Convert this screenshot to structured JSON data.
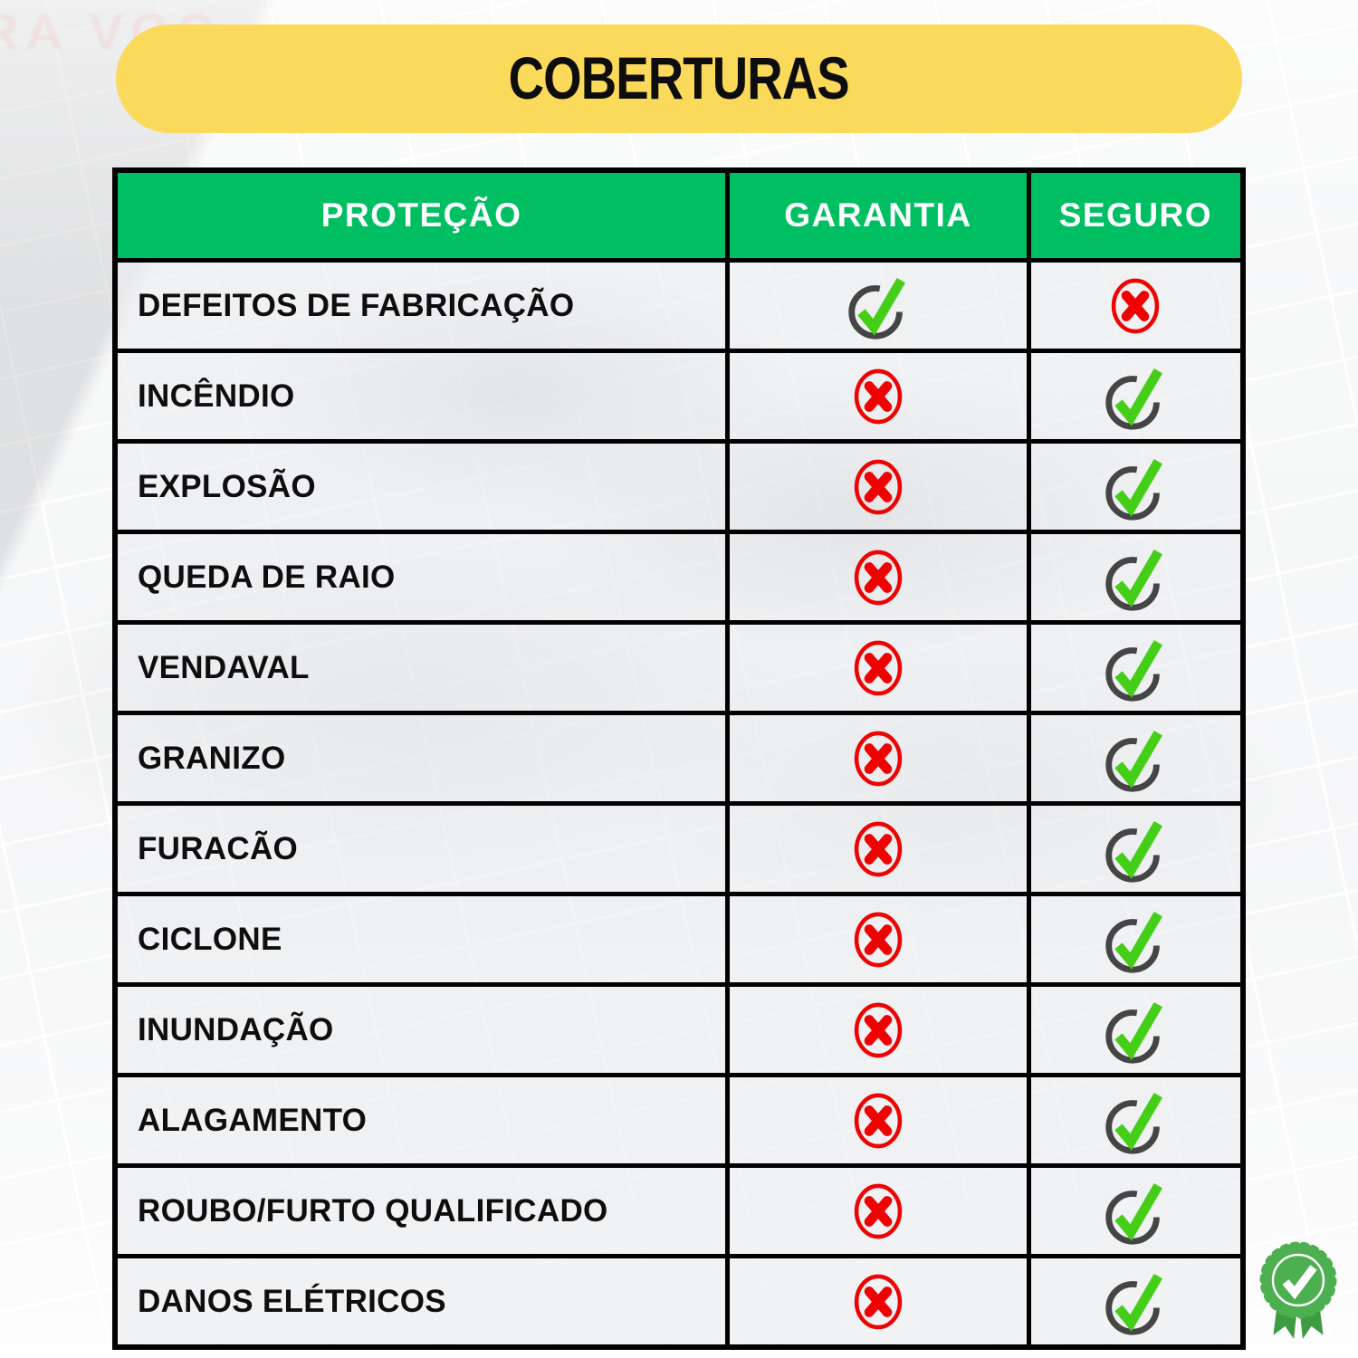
{
  "page": {
    "title": "COBERTURAS"
  },
  "background": {
    "sign_text": "RA VOC"
  },
  "table": {
    "headers": [
      "PROTEÇÃO",
      "GARANTIA",
      "SEGURO"
    ],
    "rows": [
      {
        "protection": "DEFEITOS DE FABRICAÇÃO",
        "garantia": "check",
        "seguro": "cross"
      },
      {
        "protection": "INCÊNDIO",
        "garantia": "cross",
        "seguro": "check"
      },
      {
        "protection": "EXPLOSÃO",
        "garantia": "cross",
        "seguro": "check"
      },
      {
        "protection": "QUEDA DE RAIO",
        "garantia": "cross",
        "seguro": "check"
      },
      {
        "protection": "VENDAVAL",
        "garantia": "cross",
        "seguro": "check"
      },
      {
        "protection": "GRANIZO",
        "garantia": "cross",
        "seguro": "check"
      },
      {
        "protection": "FURACÃO",
        "garantia": "cross",
        "seguro": "check"
      },
      {
        "protection": "CICLONE",
        "garantia": "cross",
        "seguro": "check"
      },
      {
        "protection": "INUNDAÇÃO",
        "garantia": "cross",
        "seguro": "check"
      },
      {
        "protection": "ALAGAMENTO",
        "garantia": "cross",
        "seguro": "check"
      },
      {
        "protection": "ROUBO/FURTO QUALIFICADO",
        "garantia": "cross",
        "seguro": "check"
      },
      {
        "protection": "DANOS ELÉTRICOS",
        "garantia": "cross",
        "seguro": "check"
      }
    ]
  },
  "icons": {
    "check": "check-in-circle-icon",
    "cross": "x-in-circle-icon",
    "badge": "ribbon-award-check-icon"
  },
  "colors": {
    "banner_yellow": "#FBD95A",
    "header_green": "#00BF63",
    "cross_red": "#EE0202",
    "check_green": "#45CE18",
    "check_circle_gray": "#454545",
    "badge_green": "#4CAF50",
    "badge_ribbon_green": "#3E9B41",
    "border_black": "#000000"
  }
}
